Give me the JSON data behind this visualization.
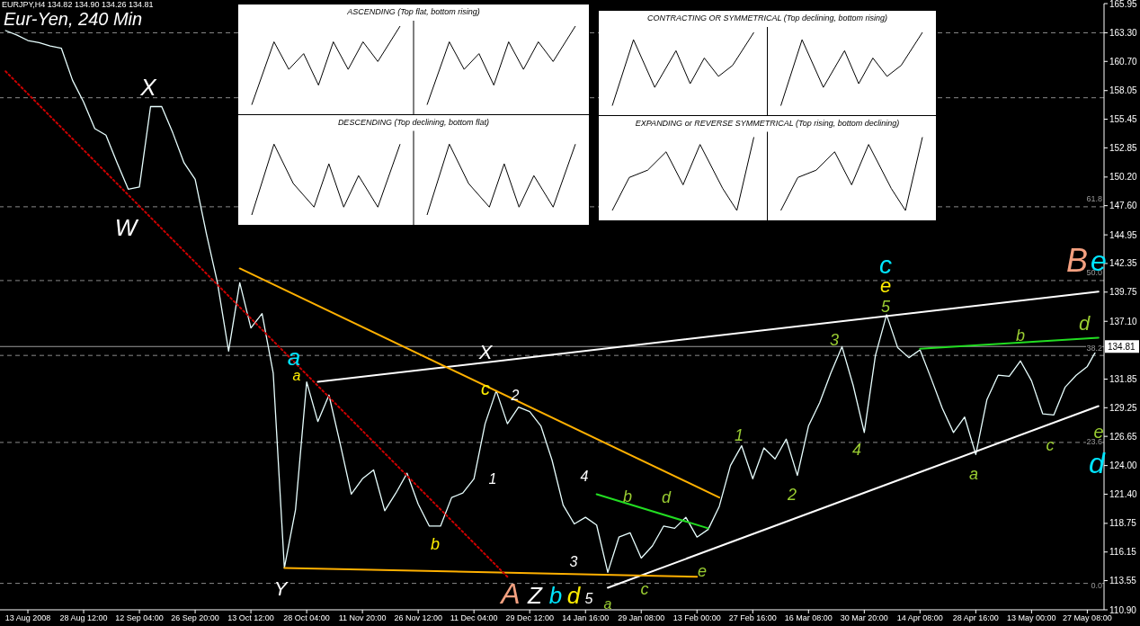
{
  "chart_data": {
    "type": "line",
    "title": "Eur-Yen, 240 Min",
    "categories": [
      null,
      null,
      "13 Aug 2008",
      null,
      null,
      null,
      null,
      "28 Aug 12:00",
      null,
      null,
      null,
      null,
      "12 Sep 04:00",
      null,
      null,
      null,
      null,
      "26 Sep 20:00",
      null,
      null,
      null,
      null,
      "13 Oct 12:00",
      null,
      null,
      null,
      null,
      "28 Oct 04:00",
      null,
      null,
      null,
      null,
      "11 Nov 20:00",
      null,
      null,
      null,
      null,
      "26 Nov 12:00",
      null,
      null,
      null,
      null,
      "11 Dec 04:00",
      null,
      null,
      null,
      null,
      "29 Dec 12:00",
      null,
      null,
      null,
      null,
      "14 Jan 16:00",
      null,
      null,
      null,
      null,
      "29 Jan 08:00",
      null,
      null,
      null,
      null,
      "13 Feb 00:00",
      null,
      null,
      null,
      null,
      "27 Feb 16:00",
      null,
      null,
      null,
      null,
      "16 Mar 08:00",
      null,
      null,
      null,
      null,
      "30 Mar 20:00",
      null,
      null,
      null,
      null,
      "14 Apr 08:00",
      null,
      null,
      null,
      null,
      "28 Apr 16:00",
      null,
      null,
      null,
      null,
      "13 May 00:00",
      null,
      null,
      null,
      null,
      "27 May 08:00",
      null
    ],
    "ylim": [
      110.9,
      165.95
    ],
    "yticks": [
      {
        "value": 110.9,
        "label": "110.90"
      },
      113.55,
      116.15,
      118.75,
      {
        "value": 121.4,
        "label": "121.40"
      },
      {
        "value": 124,
        "label": "124.00"
      },
      126.65,
      129.25,
      131.85,
      {
        "value": 137.1,
        "label": "137.10"
      },
      139.75,
      142.35,
      144.95,
      {
        "value": 147.6,
        "label": "147.60"
      },
      {
        "value": 150.2,
        "label": "150.20"
      },
      152.85,
      155.45,
      158.05,
      {
        "value": 160.7,
        "label": "160.70"
      },
      {
        "value": 163.3,
        "label": "163.30"
      },
      165.95
    ],
    "marker": "none",
    "series": [
      {
        "color": "#e8ffff",
        "line_style": "solid",
        "values": [
          163.5,
          163.1,
          162.6,
          162.4,
          162.1,
          161.9,
          159.0,
          157.0,
          154.6,
          154.0,
          151.5,
          149.1,
          149.3,
          156.6,
          156.6,
          154.2,
          151.5,
          150.0,
          145.1,
          140.6,
          134.4,
          140.6,
          136.5,
          137.8,
          132.4,
          114.7,
          120.0,
          131.6,
          128.0,
          130.4,
          126.0,
          121.4,
          122.8,
          123.6,
          119.9,
          121.5,
          123.3,
          120.5,
          118.5,
          118.5,
          121.1,
          121.5,
          122.8,
          127.8,
          130.8,
          127.8,
          129.3,
          128.9,
          127.6,
          124.5,
          120.4,
          118.7,
          119.3,
          118.6,
          114.3,
          117.5,
          117.9,
          115.6,
          116.7,
          118.5,
          118.3,
          119.3,
          117.5,
          118.2,
          120.3,
          124.0,
          125.8,
          122.8,
          125.6,
          124.6,
          126.4,
          123.1,
          127.6,
          129.7,
          132.4,
          134.8,
          131.3,
          127.0,
          134.0,
          137.7,
          134.7,
          133.8,
          134.5,
          131.9,
          129.2,
          127.0,
          128.4,
          125.0,
          130.0,
          132.2,
          132.1,
          133.5,
          131.7,
          128.7,
          128.6,
          131.1,
          132.2,
          133.0,
          134.8
        ]
      },
      {
        "color": "#ffffff",
        "line_style": "solid",
        "values": [
          null,
          null,
          null,
          null,
          null,
          null,
          null,
          null,
          null,
          null,
          null,
          null,
          null,
          null,
          null,
          null,
          null,
          null,
          null,
          null,
          null,
          null,
          null,
          null,
          null,
          null,
          null,
          null,
          131.6,
          null,
          null,
          null,
          null,
          null,
          null,
          null,
          null,
          null,
          null,
          null,
          null,
          null,
          null,
          null,
          null,
          null,
          null,
          null,
          null,
          null,
          null,
          null,
          null,
          null,
          null,
          null,
          null,
          null,
          null,
          null,
          null,
          null,
          null,
          null,
          null,
          null,
          null,
          null,
          null,
          null,
          null,
          null,
          null,
          null,
          null,
          null,
          null,
          null,
          null,
          null,
          null,
          null,
          null,
          null,
          null,
          null,
          null,
          null,
          null,
          null,
          null,
          null,
          null,
          null,
          null,
          null,
          null,
          null,
          139.8
        ]
      },
      {
        "color": "#ffffff",
        "line_style": "solid",
        "values": [
          null,
          null,
          null,
          null,
          null,
          null,
          null,
          null,
          null,
          null,
          null,
          null,
          null,
          null,
          null,
          null,
          null,
          null,
          null,
          null,
          null,
          null,
          null,
          null,
          null,
          null,
          null,
          null,
          null,
          null,
          null,
          null,
          null,
          null,
          null,
          null,
          null,
          null,
          null,
          null,
          null,
          null,
          null,
          null,
          null,
          null,
          null,
          null,
          null,
          null,
          null,
          null,
          null,
          null,
          112.9,
          null,
          null,
          null,
          null,
          null,
          null,
          null,
          null,
          null,
          null,
          null,
          null,
          null,
          null,
          null,
          null,
          null,
          null,
          null,
          null,
          null,
          null,
          null,
          null,
          null,
          null,
          null,
          null,
          null,
          null,
          null,
          null,
          null,
          null,
          null,
          null,
          null,
          null,
          null,
          null,
          null,
          null,
          null,
          129.4
        ]
      },
      {
        "color": "#ffb000",
        "line_style": "solid",
        "values": [
          null,
          null,
          null,
          null,
          null,
          null,
          null,
          null,
          null,
          null,
          null,
          null,
          null,
          null,
          null,
          null,
          null,
          null,
          null,
          null,
          null,
          141.9,
          null,
          null,
          null,
          null,
          null,
          null,
          null,
          null,
          null,
          null,
          null,
          null,
          null,
          null,
          null,
          null,
          null,
          null,
          null,
          null,
          null,
          null,
          null,
          null,
          null,
          null,
          null,
          null,
          null,
          null,
          null,
          null,
          null,
          null,
          null,
          null,
          null,
          null,
          null,
          null,
          null,
          null,
          121.1,
          null,
          null,
          null,
          null,
          null,
          null,
          null,
          null,
          null,
          null,
          null,
          null,
          null,
          null,
          null,
          null,
          null,
          null,
          null,
          null,
          null,
          null,
          null,
          null,
          null,
          null,
          null,
          null,
          null,
          null,
          null,
          null,
          null,
          null
        ]
      },
      {
        "color": "#ffb000",
        "line_style": "solid",
        "values": [
          null,
          null,
          null,
          null,
          null,
          null,
          null,
          null,
          null,
          null,
          null,
          null,
          null,
          null,
          null,
          null,
          null,
          null,
          null,
          null,
          null,
          null,
          null,
          null,
          null,
          114.7,
          null,
          null,
          null,
          null,
          null,
          null,
          null,
          null,
          null,
          null,
          null,
          null,
          null,
          null,
          null,
          null,
          null,
          null,
          null,
          null,
          null,
          null,
          null,
          null,
          null,
          null,
          null,
          null,
          null,
          null,
          null,
          null,
          null,
          null,
          null,
          null,
          113.9,
          null,
          null,
          null,
          null,
          null,
          null,
          null,
          null,
          null,
          null,
          null,
          null,
          null,
          null,
          null,
          null,
          null,
          null,
          null,
          null,
          null,
          null,
          null,
          null,
          null,
          null,
          null,
          null,
          null,
          null,
          null,
          null,
          null,
          null,
          null,
          null
        ]
      },
      {
        "color": "#22dd22",
        "line_style": "solid",
        "values": [
          null,
          null,
          null,
          null,
          null,
          null,
          null,
          null,
          null,
          null,
          null,
          null,
          null,
          null,
          null,
          null,
          null,
          null,
          null,
          null,
          null,
          null,
          null,
          null,
          null,
          null,
          null,
          null,
          null,
          null,
          null,
          null,
          null,
          null,
          null,
          null,
          null,
          null,
          null,
          null,
          null,
          null,
          null,
          null,
          null,
          null,
          null,
          null,
          null,
          null,
          null,
          null,
          null,
          121.4,
          null,
          null,
          null,
          null,
          null,
          null,
          null,
          null,
          null,
          118.3,
          null,
          null,
          null,
          null,
          null,
          null,
          null,
          null,
          null,
          null,
          null,
          null,
          null,
          null,
          null,
          null,
          null,
          null,
          null,
          null,
          null,
          null,
          null,
          null,
          null,
          null,
          null,
          null,
          null,
          null,
          null,
          null,
          null,
          null,
          null
        ]
      },
      {
        "color": "#22dd22",
        "line_style": "solid",
        "values": [
          null,
          null,
          null,
          null,
          null,
          null,
          null,
          null,
          null,
          null,
          null,
          null,
          null,
          null,
          null,
          null,
          null,
          null,
          null,
          null,
          null,
          null,
          null,
          null,
          null,
          null,
          null,
          null,
          null,
          null,
          null,
          null,
          null,
          null,
          null,
          null,
          null,
          null,
          null,
          null,
          null,
          null,
          null,
          null,
          null,
          null,
          null,
          null,
          null,
          null,
          null,
          null,
          null,
          null,
          null,
          null,
          null,
          null,
          null,
          null,
          null,
          null,
          null,
          null,
          null,
          null,
          null,
          null,
          null,
          null,
          null,
          null,
          null,
          null,
          null,
          null,
          null,
          null,
          null,
          null,
          null,
          null,
          134.6,
          null,
          null,
          null,
          null,
          null,
          null,
          null,
          null,
          null,
          null,
          null,
          null,
          null,
          null,
          null,
          135.6
        ]
      },
      {
        "color": "#cc0000",
        "line_style": "dotted",
        "values": [
          159.8,
          null,
          null,
          null,
          null,
          null,
          null,
          null,
          null,
          null,
          null,
          null,
          null,
          null,
          null,
          null,
          null,
          null,
          null,
          null,
          null,
          null,
          null,
          null,
          null,
          null,
          null,
          null,
          null,
          null,
          null,
          null,
          null,
          null,
          null,
          null,
          null,
          null,
          null,
          null,
          null,
          null,
          null,
          null,
          null,
          113.9,
          null,
          null,
          null,
          null,
          null,
          null,
          null,
          null,
          null,
          null,
          null,
          null,
          null,
          null,
          null,
          null,
          null,
          null,
          null,
          null,
          null,
          null,
          null,
          null,
          null,
          null,
          null,
          null,
          null,
          null,
          null,
          null,
          null,
          null,
          null,
          null,
          null,
          null,
          null,
          null,
          null,
          null,
          null,
          null,
          null,
          null,
          null,
          null,
          null,
          null,
          null,
          null,
          null
        ]
      }
    ],
    "ref_lines": [
      {
        "axis": "y",
        "value": 163.3,
        "color": "#8a8a8a",
        "line_style": "dashed"
      },
      {
        "axis": "y",
        "value": 157.4,
        "color": "#8a8a8a",
        "line_style": "dashed"
      },
      {
        "axis": "y",
        "value": 147.5,
        "color": "#8a8a8a",
        "line_style": "dashed"
      },
      {
        "axis": "y",
        "value": 140.8,
        "color": "#8a8a8a",
        "line_style": "dashed"
      },
      {
        "axis": "y",
        "value": 134.0,
        "color": "#8a8a8a",
        "line_style": "dashed"
      },
      {
        "axis": "y",
        "value": 126.1,
        "color": "#8a8a8a",
        "line_style": "dashed"
      },
      {
        "axis": "y",
        "value": 113.3,
        "color": "#8a8a8a",
        "line_style": "dashed"
      },
      {
        "axis": "y",
        "value": 134.81,
        "label": "134.81",
        "color": "#9a9a9a",
        "line_style": "solid"
      }
    ],
    "annotations": [
      "EURJPY,H4 134.82 134.90 134.26 134.81",
      "ASCENDING (Top flat, bottom rising)",
      "DESCENDING (Top declining, bottom flat)",
      "CONTRACTING OR SYMMETRICAL (Top declining, bottom rising)",
      "EXPANDING or REVERSE SYMMETRICAL (Top rising, bottom declining)",
      "61.8",
      "50.0",
      "38.2",
      "23.6",
      "0.0",
      "X",
      "W",
      "Y",
      "a",
      "a",
      "X",
      "c",
      "2",
      "1",
      "b",
      "A",
      "Z",
      "b",
      "d",
      "5",
      "a",
      "4",
      "3",
      "b",
      "d",
      "c",
      "e",
      "1",
      "2",
      "3",
      "4",
      "5",
      "e",
      "c",
      "b",
      "a",
      "c",
      "B",
      "e",
      "d",
      "e",
      "d"
    ]
  }
}
